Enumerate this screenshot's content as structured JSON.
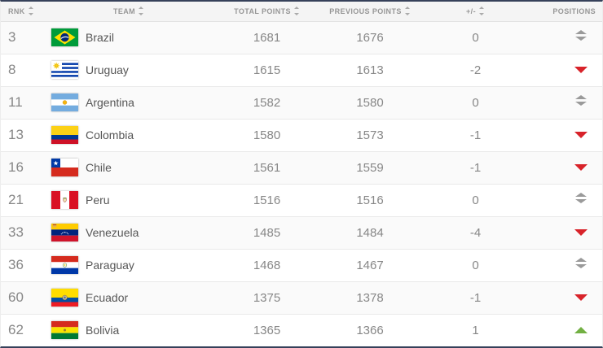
{
  "table": {
    "columns": [
      {
        "label": "RNK",
        "sortable": true
      },
      {
        "label": "TEAM",
        "sortable": true
      },
      {
        "label": "TOTAL POINTS",
        "sortable": true
      },
      {
        "label": "PREVIOUS POINTS",
        "sortable": true
      },
      {
        "label": "+/-",
        "sortable": true
      },
      {
        "label": "POSITIONS",
        "sortable": false
      }
    ],
    "rows": [
      {
        "rank": "3",
        "team": "Brazil",
        "flag": "brazil",
        "flag_icon": "brazil-flag-icon",
        "total_points": "1681",
        "previous_points": "1676",
        "change": "0",
        "position_trend": "equal"
      },
      {
        "rank": "8",
        "team": "Uruguay",
        "flag": "uruguay",
        "flag_icon": "uruguay-flag-icon",
        "total_points": "1615",
        "previous_points": "1613",
        "change": "-2",
        "position_trend": "down"
      },
      {
        "rank": "11",
        "team": "Argentina",
        "flag": "argentina",
        "flag_icon": "argentina-flag-icon",
        "total_points": "1582",
        "previous_points": "1580",
        "change": "0",
        "position_trend": "equal"
      },
      {
        "rank": "13",
        "team": "Colombia",
        "flag": "colombia",
        "flag_icon": "colombia-flag-icon",
        "total_points": "1580",
        "previous_points": "1573",
        "change": "-1",
        "position_trend": "down"
      },
      {
        "rank": "16",
        "team": "Chile",
        "flag": "chile",
        "flag_icon": "chile-flag-icon",
        "total_points": "1561",
        "previous_points": "1559",
        "change": "-1",
        "position_trend": "down"
      },
      {
        "rank": "21",
        "team": "Peru",
        "flag": "peru",
        "flag_icon": "peru-flag-icon",
        "total_points": "1516",
        "previous_points": "1516",
        "change": "0",
        "position_trend": "equal"
      },
      {
        "rank": "33",
        "team": "Venezuela",
        "flag": "venezuela",
        "flag_icon": "venezuela-flag-icon",
        "total_points": "1485",
        "previous_points": "1484",
        "change": "-4",
        "position_trend": "down"
      },
      {
        "rank": "36",
        "team": "Paraguay",
        "flag": "paraguay",
        "flag_icon": "paraguay-flag-icon",
        "total_points": "1468",
        "previous_points": "1467",
        "change": "0",
        "position_trend": "equal"
      },
      {
        "rank": "60",
        "team": "Ecuador",
        "flag": "ecuador",
        "flag_icon": "ecuador-flag-icon",
        "total_points": "1375",
        "previous_points": "1378",
        "change": "-1",
        "position_trend": "down"
      },
      {
        "rank": "62",
        "team": "Bolivia",
        "flag": "bolivia",
        "flag_icon": "bolivia-flag-icon",
        "total_points": "1365",
        "previous_points": "1366",
        "change": "1",
        "position_trend": "up"
      }
    ]
  },
  "colors": {
    "accent_bar": "#36415a",
    "header_bg": "#f4f4f4",
    "trend_up": "#72b043",
    "trend_down": "#d8232a",
    "trend_equal": "#9a9a9a"
  }
}
